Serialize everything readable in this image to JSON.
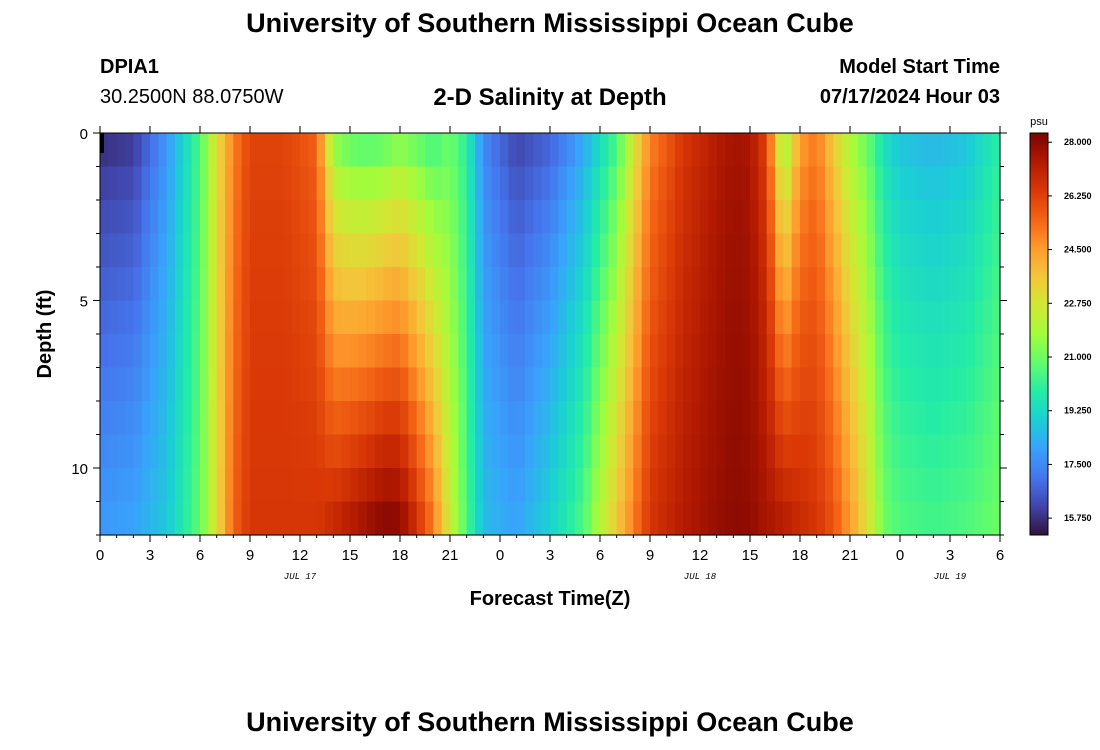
{
  "header": {
    "title": "University of Southern Mississippi Ocean Cube",
    "station_id": "DPIA1",
    "coordinates": "30.2500N  88.0750W",
    "chart_title": "2-D Salinity at Depth",
    "model_start_label": "Model Start Time",
    "model_start_value": "07/17/2024 Hour 03"
  },
  "footer": {
    "title": "University of Southern Mississippi Ocean Cube"
  },
  "colors": {
    "background": "#ffffff",
    "marker": "#000000",
    "colormap": [
      "#30123b",
      "#4145ab",
      "#4675ed",
      "#39a2fc",
      "#1bcfd4",
      "#24eca6",
      "#61fc6c",
      "#a4fc3b",
      "#d1e834",
      "#f3c63a",
      "#fe9b2d",
      "#f36315",
      "#d93806",
      "#b11901",
      "#7a0402"
    ]
  },
  "chart_data": {
    "type": "heatmap",
    "title": "2-D Salinity at Depth",
    "xlabel": "Forecast Time(Z)",
    "ylabel": "Depth (ft)",
    "x_range_hours": [
      0,
      54
    ],
    "y_range_ft": [
      0,
      12
    ],
    "y_inverted": true,
    "x_tick_hours": [
      0,
      3,
      6,
      9,
      12,
      15,
      18,
      21,
      24,
      27,
      30,
      33,
      36,
      39,
      42,
      45,
      48,
      51,
      54
    ],
    "x_tick_labels": [
      "0",
      "3",
      "6",
      "9",
      "12",
      "15",
      "18",
      "21",
      "0",
      "3",
      "6",
      "9",
      "12",
      "15",
      "18",
      "21",
      "0",
      "3",
      "6"
    ],
    "day_labels": [
      {
        "label": "JUL 17",
        "hour": 12
      },
      {
        "label": "JUL 18",
        "hour": 36
      },
      {
        "label": "JUL 19",
        "hour": 51
      }
    ],
    "y_tick_values": [
      0,
      5,
      10
    ],
    "y_tick_labels": [
      "0",
      "5",
      "10"
    ],
    "depth_levels_ft": [
      0.5,
      1.5,
      2.5,
      3.5,
      4.5,
      5.5,
      6.5,
      7.5,
      8.5,
      9.5,
      10.5,
      11.5
    ],
    "colorbar": {
      "unit": "psu",
      "min": 15.2,
      "max": 28.3,
      "tick_values": [
        15.75,
        17.5,
        19.25,
        21.0,
        22.75,
        24.5,
        26.25,
        28.0
      ],
      "tick_labels": [
        "15.750",
        "17.500",
        "19.250",
        "21.000",
        "22.750",
        "24.500",
        "26.250",
        "28.000"
      ]
    },
    "profile": {
      "description": "Salinity (psu) at surface and bottom vs forecast hour; intermediate depths interpolated",
      "hours": [
        0,
        2,
        4,
        6,
        7,
        8,
        9,
        11,
        13,
        14,
        15,
        16,
        17,
        18,
        19,
        20,
        21,
        22,
        23,
        25,
        27,
        29,
        31,
        33,
        35,
        37,
        38,
        39,
        40,
        41,
        42,
        43,
        44,
        45,
        46,
        47,
        48,
        50,
        52,
        54
      ],
      "surface": [
        15.8,
        16.0,
        17.8,
        20.5,
        23.0,
        25.0,
        26.2,
        26.2,
        25.6,
        21.6,
        21.0,
        20.8,
        21.0,
        21.5,
        21.0,
        20.5,
        21.0,
        20.0,
        17.5,
        16.2,
        16.8,
        18.2,
        20.5,
        25.0,
        26.5,
        27.3,
        27.6,
        27.5,
        26.2,
        21.5,
        24.5,
        25.2,
        23.5,
        22.0,
        21.0,
        19.5,
        18.8,
        18.5,
        18.8,
        20.0
      ],
      "bottom": [
        17.8,
        18.0,
        18.8,
        20.8,
        23.0,
        25.5,
        26.5,
        26.5,
        26.5,
        26.8,
        27.2,
        27.6,
        28.0,
        27.9,
        26.6,
        25.0,
        22.5,
        20.5,
        18.5,
        18.0,
        19.0,
        20.5,
        23.5,
        26.5,
        27.3,
        27.8,
        28.0,
        27.9,
        27.5,
        27.2,
        26.8,
        26.5,
        25.8,
        24.5,
        23.0,
        21.0,
        20.5,
        20.3,
        20.5,
        21.0
      ]
    }
  }
}
